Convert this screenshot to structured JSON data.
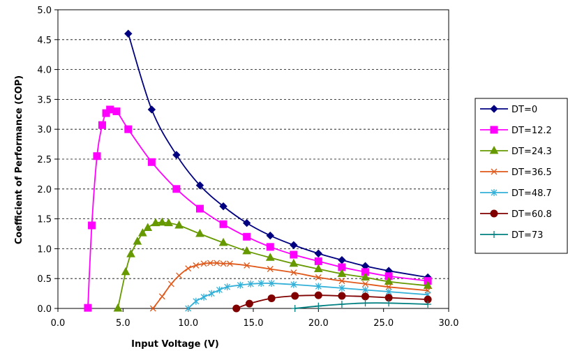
{
  "chart_data": {
    "type": "line",
    "xlabel": "Input Voltage (V)",
    "ylabel": "Coefficient of Performance (COP)",
    "xlim": [
      0,
      30
    ],
    "ylim": [
      0,
      5
    ],
    "xticks": [
      "0.0",
      "5.0",
      "10.0",
      "15.0",
      "20.0",
      "25.0",
      "30.0"
    ],
    "yticks": [
      "0.0",
      "0.5",
      "1.0",
      "1.5",
      "2.0",
      "2.5",
      "3.0",
      "3.5",
      "4.0",
      "4.5",
      "5.0"
    ],
    "grid": "horizontal dashed",
    "legend_position": "right",
    "series": [
      {
        "name": "DT=0",
        "color": "#000080",
        "marker": "diamond",
        "points": [
          [
            5.4,
            4.6
          ],
          [
            7.2,
            3.33
          ],
          [
            9.1,
            2.57
          ],
          [
            10.9,
            2.06
          ],
          [
            12.7,
            1.71
          ],
          [
            14.5,
            1.43
          ],
          [
            16.3,
            1.22
          ],
          [
            18.1,
            1.06
          ],
          [
            20.0,
            0.92
          ],
          [
            21.8,
            0.81
          ],
          [
            23.6,
            0.71
          ],
          [
            25.4,
            0.63
          ],
          [
            28.4,
            0.52
          ]
        ]
      },
      {
        "name": "DT=12.2",
        "color": "#FF00FF",
        "marker": "square",
        "points": [
          [
            2.3,
            0.01
          ],
          [
            2.6,
            1.39
          ],
          [
            3.0,
            2.55
          ],
          [
            3.4,
            3.07
          ],
          [
            3.7,
            3.27
          ],
          [
            4.0,
            3.33
          ],
          [
            4.5,
            3.3
          ],
          [
            5.4,
            3.0
          ],
          [
            7.2,
            2.45
          ],
          [
            9.1,
            2.0
          ],
          [
            10.9,
            1.67
          ],
          [
            12.7,
            1.41
          ],
          [
            14.5,
            1.2
          ],
          [
            16.3,
            1.03
          ],
          [
            18.1,
            0.9
          ],
          [
            20.0,
            0.79
          ],
          [
            21.8,
            0.69
          ],
          [
            23.6,
            0.61
          ],
          [
            25.4,
            0.54
          ],
          [
            28.4,
            0.46
          ]
        ]
      },
      {
        "name": "DT=24.3",
        "color": "#669900",
        "marker": "triangle",
        "points": [
          [
            4.6,
            0.0
          ],
          [
            5.2,
            0.61
          ],
          [
            5.6,
            0.91
          ],
          [
            6.1,
            1.12
          ],
          [
            6.5,
            1.26
          ],
          [
            6.9,
            1.35
          ],
          [
            7.5,
            1.43
          ],
          [
            8.0,
            1.44
          ],
          [
            8.5,
            1.43
          ],
          [
            9.3,
            1.39
          ],
          [
            10.9,
            1.25
          ],
          [
            12.7,
            1.1
          ],
          [
            14.5,
            0.96
          ],
          [
            16.3,
            0.85
          ],
          [
            18.1,
            0.75
          ],
          [
            20.0,
            0.66
          ],
          [
            21.8,
            0.58
          ],
          [
            23.6,
            0.52
          ],
          [
            25.4,
            0.45
          ],
          [
            28.4,
            0.38
          ]
        ]
      },
      {
        "name": "DT=36.5",
        "color": "#E0581A",
        "marker": "x",
        "points": [
          [
            7.3,
            0.0
          ],
          [
            8.0,
            0.2
          ],
          [
            8.7,
            0.41
          ],
          [
            9.3,
            0.55
          ],
          [
            10.0,
            0.67
          ],
          [
            10.6,
            0.72
          ],
          [
            11.2,
            0.75
          ],
          [
            11.7,
            0.76
          ],
          [
            12.2,
            0.76
          ],
          [
            12.7,
            0.75
          ],
          [
            13.2,
            0.75
          ],
          [
            14.5,
            0.72
          ],
          [
            16.3,
            0.66
          ],
          [
            18.1,
            0.6
          ],
          [
            20.0,
            0.52
          ],
          [
            21.8,
            0.46
          ],
          [
            23.6,
            0.41
          ],
          [
            25.4,
            0.36
          ],
          [
            28.4,
            0.3
          ]
        ]
      },
      {
        "name": "DT=48.7",
        "color": "#33B0D8",
        "marker": "asterisk",
        "points": [
          [
            10.0,
            0.0
          ],
          [
            10.6,
            0.12
          ],
          [
            11.2,
            0.19
          ],
          [
            11.8,
            0.25
          ],
          [
            12.4,
            0.31
          ],
          [
            13.0,
            0.36
          ],
          [
            14.0,
            0.39
          ],
          [
            14.8,
            0.41
          ],
          [
            15.6,
            0.42
          ],
          [
            16.4,
            0.42
          ],
          [
            18.1,
            0.4
          ],
          [
            20.0,
            0.37
          ],
          [
            21.8,
            0.34
          ],
          [
            23.6,
            0.31
          ],
          [
            25.4,
            0.28
          ],
          [
            28.4,
            0.23
          ]
        ]
      },
      {
        "name": "DT=60.8",
        "color": "#800000",
        "marker": "circle",
        "points": [
          [
            13.7,
            0.0
          ],
          [
            14.7,
            0.08
          ],
          [
            16.4,
            0.17
          ],
          [
            18.2,
            0.21
          ],
          [
            20.0,
            0.22
          ],
          [
            21.8,
            0.21
          ],
          [
            23.6,
            0.2
          ],
          [
            25.4,
            0.18
          ],
          [
            28.4,
            0.15
          ]
        ]
      },
      {
        "name": "DT=73",
        "color": "#008080",
        "marker": "plus",
        "points": [
          [
            18.2,
            0.0
          ],
          [
            20.0,
            0.04
          ],
          [
            21.8,
            0.07
          ],
          [
            23.6,
            0.09
          ],
          [
            25.4,
            0.09
          ],
          [
            28.4,
            0.07
          ]
        ]
      }
    ]
  }
}
